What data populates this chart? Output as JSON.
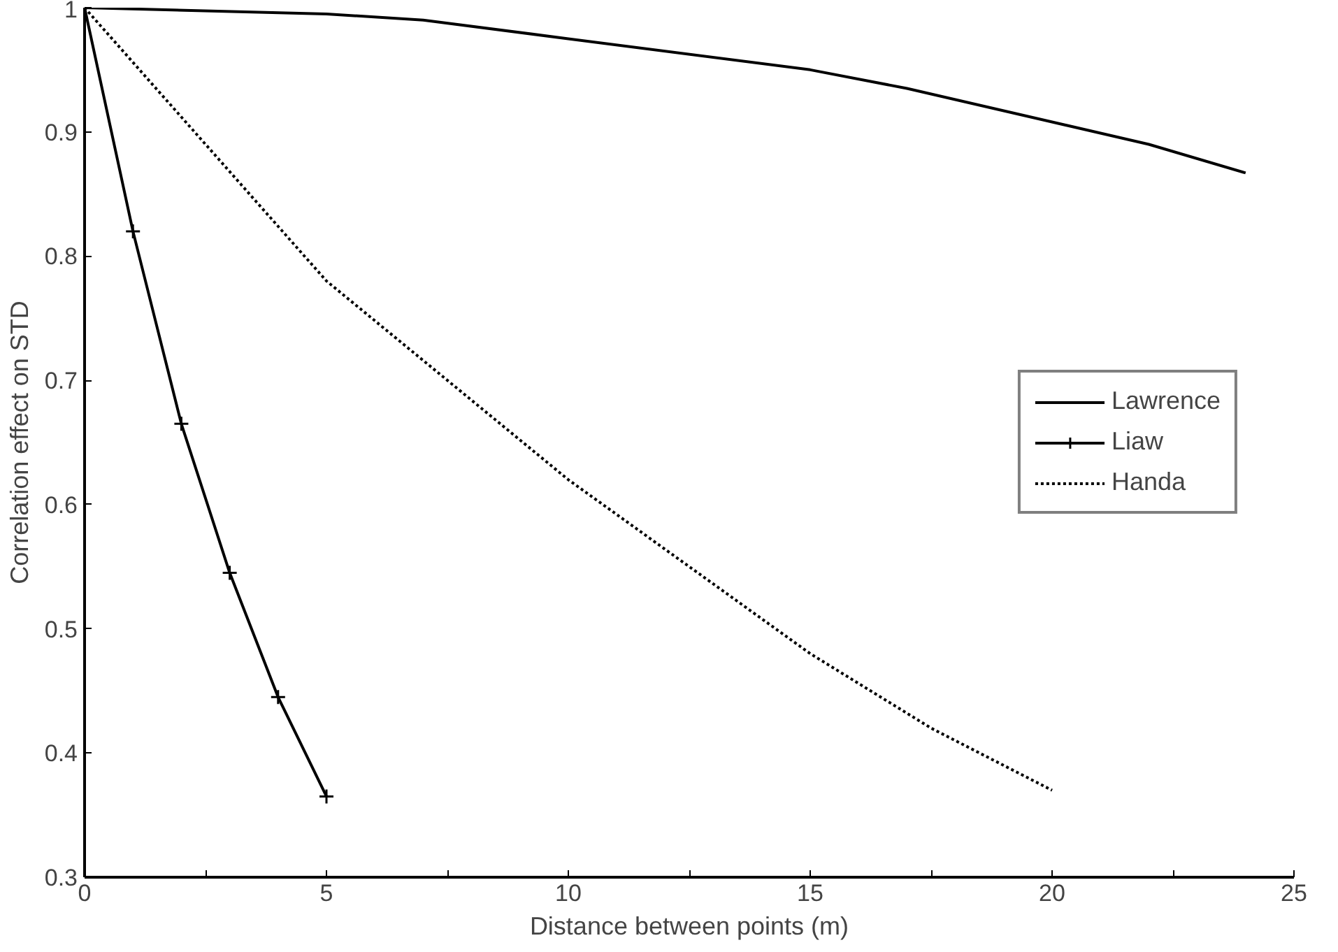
{
  "chart_data": {
    "type": "line",
    "xlabel": "Distance between points (m)",
    "ylabel": "Correlation effect on STD",
    "xlim": [
      0,
      25
    ],
    "ylim": [
      0.3,
      1
    ],
    "xticks": [
      0,
      {
        "value": 2.5,
        "label": null
      },
      5,
      {
        "value": 7.5,
        "label": null
      },
      10,
      {
        "value": 12.5,
        "label": null
      },
      15,
      {
        "value": 17.5,
        "label": null
      },
      20,
      {
        "value": 22.5,
        "label": null
      },
      25
    ],
    "yticks": [
      0.3,
      0.4,
      0.5,
      0.6,
      0.7,
      0.8,
      0.9,
      1
    ],
    "grid": false,
    "legend": "right",
    "series": [
      {
        "name": "Lawrence",
        "color": "#000000",
        "line_style": "solid",
        "marker": "none",
        "x": [
          0,
          5,
          7,
          10,
          15,
          17,
          20,
          22,
          24
        ],
        "values": [
          1,
          0.995,
          0.99,
          0.975,
          0.95,
          0.935,
          0.908,
          0.89,
          0.867
        ]
      },
      {
        "name": "Liaw",
        "color": "#000000",
        "line_style": "solid",
        "marker": "cross",
        "x": [
          0,
          1,
          2,
          3,
          4,
          5
        ],
        "values": [
          1,
          0.82,
          0.665,
          0.545,
          0.445,
          0.365
        ]
      },
      {
        "name": "Handa",
        "color": "#000000",
        "line_style": "dotted",
        "marker": "none",
        "x": [
          0,
          2.5,
          5,
          7.5,
          10,
          12.5,
          15,
          17.5,
          20
        ],
        "values": [
          1,
          0.89,
          0.78,
          0.7,
          0.62,
          0.55,
          0.48,
          0.42,
          0.37
        ]
      }
    ]
  }
}
